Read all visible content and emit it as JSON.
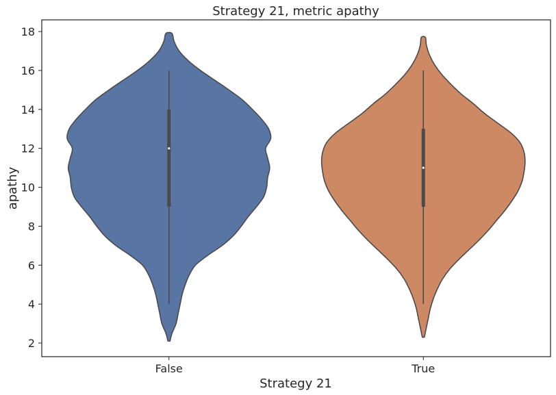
{
  "chart_data": {
    "type": "violin",
    "title": "Strategy 21, metric apathy",
    "xlabel": "Strategy 21",
    "ylabel": "apathy",
    "categories": [
      "False",
      "True"
    ],
    "ylim": [
      1.3,
      18.6
    ],
    "yticks": [
      2,
      4,
      6,
      8,
      10,
      12,
      14,
      16,
      18
    ],
    "grid": false,
    "colors": {
      "False": "#5875a4",
      "True": "#cc8963",
      "outline": "#4a4a4a",
      "box": "#4a4a4a",
      "median": "#ffffff"
    },
    "series": [
      {
        "category": "False",
        "whisker": [
          4,
          16
        ],
        "quartiles": [
          9,
          14
        ],
        "median": 12,
        "density": [
          [
            2.1,
            0.01
          ],
          [
            2.5,
            0.03
          ],
          [
            3.0,
            0.07
          ],
          [
            3.5,
            0.09
          ],
          [
            4.0,
            0.11
          ],
          [
            4.5,
            0.13
          ],
          [
            5.0,
            0.16
          ],
          [
            5.5,
            0.2
          ],
          [
            6.0,
            0.26
          ],
          [
            6.5,
            0.38
          ],
          [
            7.0,
            0.52
          ],
          [
            7.5,
            0.63
          ],
          [
            8.0,
            0.71
          ],
          [
            8.5,
            0.78
          ],
          [
            9.0,
            0.86
          ],
          [
            9.5,
            0.93
          ],
          [
            10.0,
            0.96
          ],
          [
            10.5,
            0.97
          ],
          [
            11.0,
            0.99
          ],
          [
            11.5,
            0.97
          ],
          [
            12.0,
            0.95
          ],
          [
            12.5,
            1.0
          ],
          [
            13.0,
            0.98
          ],
          [
            13.5,
            0.91
          ],
          [
            14.0,
            0.82
          ],
          [
            14.5,
            0.72
          ],
          [
            15.0,
            0.59
          ],
          [
            15.5,
            0.45
          ],
          [
            16.0,
            0.31
          ],
          [
            16.5,
            0.19
          ],
          [
            17.0,
            0.1
          ],
          [
            17.5,
            0.05
          ],
          [
            17.9,
            0.03
          ]
        ]
      },
      {
        "category": "True",
        "whisker": [
          4,
          16
        ],
        "quartiles": [
          9,
          13
        ],
        "median": 11,
        "density": [
          [
            2.3,
            0.01
          ],
          [
            2.8,
            0.03
          ],
          [
            3.3,
            0.05
          ],
          [
            3.8,
            0.07
          ],
          [
            4.3,
            0.1
          ],
          [
            4.8,
            0.14
          ],
          [
            5.3,
            0.19
          ],
          [
            5.8,
            0.26
          ],
          [
            6.3,
            0.35
          ],
          [
            6.8,
            0.45
          ],
          [
            7.3,
            0.55
          ],
          [
            7.8,
            0.64
          ],
          [
            8.3,
            0.72
          ],
          [
            8.8,
            0.8
          ],
          [
            9.3,
            0.87
          ],
          [
            9.8,
            0.93
          ],
          [
            10.3,
            0.97
          ],
          [
            10.8,
            0.99
          ],
          [
            11.3,
            1.0
          ],
          [
            11.8,
            0.99
          ],
          [
            12.3,
            0.95
          ],
          [
            12.8,
            0.86
          ],
          [
            13.3,
            0.73
          ],
          [
            13.8,
            0.6
          ],
          [
            14.3,
            0.49
          ],
          [
            14.8,
            0.37
          ],
          [
            15.3,
            0.27
          ],
          [
            15.8,
            0.18
          ],
          [
            16.3,
            0.11
          ],
          [
            16.8,
            0.06
          ],
          [
            17.3,
            0.03
          ],
          [
            17.7,
            0.02
          ]
        ]
      }
    ]
  }
}
